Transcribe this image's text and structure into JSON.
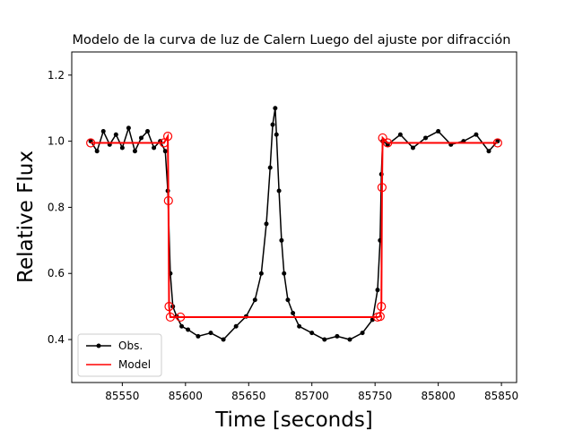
{
  "chart_data": {
    "type": "line",
    "title": "Modelo de la curva de luz de Calern Luego del ajuste por difracción",
    "xlabel": "Time [seconds]",
    "ylabel": "Relative Flux",
    "xlim": [
      85510,
      85862
    ],
    "ylim": [
      0.27,
      1.27
    ],
    "xticks": [
      85550,
      85600,
      85650,
      85700,
      85750,
      85800,
      85850
    ],
    "yticks": [
      0.4,
      0.6,
      0.8,
      1.0,
      1.2
    ],
    "xtick_labels": [
      "85550",
      "85600",
      "85650",
      "85700",
      "85750",
      "85800",
      "85850"
    ],
    "ytick_labels": [
      "0.4",
      "0.6",
      "0.8",
      "1.0",
      "1.2"
    ],
    "legend_position": "lower-left",
    "grid": false,
    "colors": {
      "observed": "#000000",
      "model": "#ff0000"
    },
    "series": [
      {
        "name": "Obs.",
        "style": "black line with dot markers",
        "x": [
          85525,
          85530,
          85535,
          85540,
          85545,
          85550,
          85555,
          85560,
          85565,
          85570,
          85575,
          85580,
          85584,
          85586,
          85588,
          85590,
          85593,
          85597,
          85602,
          85610,
          85620,
          85630,
          85640,
          85648,
          85655,
          85660,
          85664,
          85667,
          85669,
          85671,
          85672,
          85674,
          85676,
          85678,
          85681,
          85685,
          85690,
          85700,
          85710,
          85720,
          85730,
          85740,
          85748,
          85752,
          85754,
          85755,
          85756,
          85760,
          85770,
          85780,
          85790,
          85800,
          85810,
          85820,
          85830,
          85840,
          85847
        ],
        "y": [
          1.0,
          0.97,
          1.03,
          0.99,
          1.02,
          0.98,
          1.04,
          0.97,
          1.01,
          1.03,
          0.98,
          1.0,
          0.97,
          0.85,
          0.6,
          0.5,
          0.47,
          0.44,
          0.43,
          0.41,
          0.42,
          0.4,
          0.44,
          0.47,
          0.52,
          0.6,
          0.75,
          0.92,
          1.05,
          1.1,
          1.02,
          0.85,
          0.7,
          0.6,
          0.52,
          0.48,
          0.44,
          0.42,
          0.4,
          0.41,
          0.4,
          0.42,
          0.46,
          0.55,
          0.7,
          0.9,
          1.0,
          0.99,
          1.02,
          0.98,
          1.01,
          1.03,
          0.99,
          1.0,
          1.02,
          0.97,
          1.0
        ]
      },
      {
        "name": "Model",
        "style": "red line with red circle markers",
        "x": [
          85525,
          85583,
          85586,
          85586.5,
          85587,
          85588,
          85596,
          85752,
          85754,
          85755,
          85755.5,
          85756,
          85760,
          85847
        ],
        "y": [
          0.995,
          0.995,
          1.015,
          0.82,
          0.5,
          0.468,
          0.468,
          0.468,
          0.47,
          0.5,
          0.86,
          1.01,
          0.995,
          0.995
        ]
      }
    ]
  }
}
